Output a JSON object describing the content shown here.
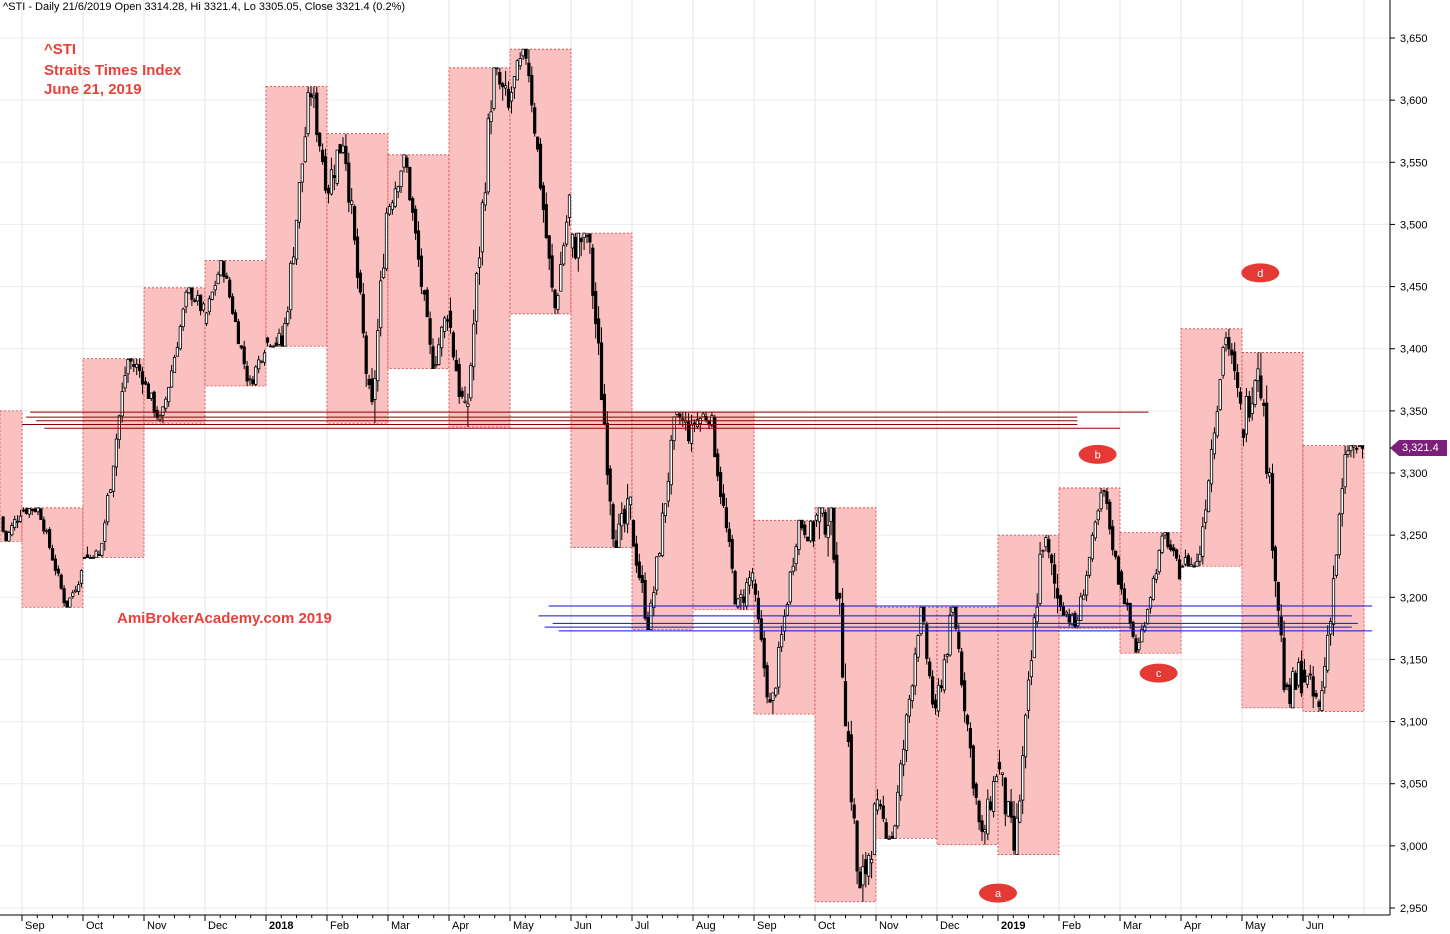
{
  "header": "^STI - Daily 21/6/2019 Open 3314.28, Hi 3321.4, Lo 3305.05, Close 3321.4 (0.2%)",
  "annotations": [
    "^STI",
    "Straits Times Index",
    "June 21, 2019"
  ],
  "watermark": "AmiBrokerAcademy.com  2019",
  "colors": {
    "box_fill": "#fbb9b9",
    "box_border": "#d04040",
    "candle": "#000000",
    "red_line": "#8b0000",
    "blue_line": "#1010c8",
    "wave_label": "#e53935",
    "last_label": "#7b1f7b"
  },
  "chart_data": {
    "type": "candlestick",
    "ylim": [
      2940,
      3670
    ],
    "y_ticks": [
      2950,
      3000,
      3050,
      3100,
      3150,
      3200,
      3250,
      3300,
      3350,
      3400,
      3450,
      3500,
      3550,
      3600,
      3650
    ],
    "y_tick_labels": [
      "2,950",
      "3,000",
      "3,050",
      "3,100",
      "3,150",
      "3,200",
      "3,250",
      "3,300",
      "3,350",
      "3,400",
      "3,450",
      "3,500",
      "3,550",
      "3,600",
      "3,650"
    ],
    "x_labels": [
      {
        "label": "Sep",
        "bold": false
      },
      {
        "label": "Oct",
        "bold": false
      },
      {
        "label": "Nov",
        "bold": false
      },
      {
        "label": "Dec",
        "bold": false
      },
      {
        "label": "2018",
        "bold": true
      },
      {
        "label": "Feb",
        "bold": false
      },
      {
        "label": "Mar",
        "bold": false
      },
      {
        "label": "Apr",
        "bold": false
      },
      {
        "label": "May",
        "bold": false
      },
      {
        "label": "Jun",
        "bold": false
      },
      {
        "label": "Jul",
        "bold": false
      },
      {
        "label": "Aug",
        "bold": false
      },
      {
        "label": "Sep",
        "bold": false
      },
      {
        "label": "Oct",
        "bold": false
      },
      {
        "label": "Nov",
        "bold": false
      },
      {
        "label": "Dec",
        "bold": false
      },
      {
        "label": "2019",
        "bold": true
      },
      {
        "label": "Feb",
        "bold": false
      },
      {
        "label": "Mar",
        "bold": false
      },
      {
        "label": "Apr",
        "bold": false
      },
      {
        "label": "May",
        "bold": false
      },
      {
        "label": "Jun",
        "bold": false
      }
    ],
    "start_month": "2017-08",
    "months": [
      "2017-08",
      "2017-09",
      "2017-10",
      "2017-11",
      "2017-12",
      "2018-01",
      "2018-02",
      "2018-03",
      "2018-04",
      "2018-05",
      "2018-06",
      "2018-07",
      "2018-08",
      "2018-09",
      "2018-10",
      "2018-11",
      "2018-12",
      "2019-01",
      "2019-02",
      "2019-03",
      "2019-04",
      "2019-05",
      "2019-06"
    ],
    "monthly": [
      {
        "open": 3300,
        "high": 3350,
        "low": 3245,
        "close": 3270
      },
      {
        "open": 3270,
        "high": 3272,
        "low": 3192,
        "close": 3220
      },
      {
        "open": 3230,
        "high": 3392,
        "low": 3232,
        "close": 3380
      },
      {
        "open": 3375,
        "high": 3449,
        "low": 3340,
        "close": 3430
      },
      {
        "open": 3420,
        "high": 3471,
        "low": 3370,
        "close": 3402
      },
      {
        "open": 3405,
        "high": 3611,
        "low": 3402,
        "close": 3540
      },
      {
        "open": 3525,
        "high": 3573,
        "low": 3340,
        "close": 3510
      },
      {
        "open": 3510,
        "high": 3556,
        "low": 3384,
        "close": 3430
      },
      {
        "open": 3430,
        "high": 3626,
        "low": 3337,
        "close": 3590
      },
      {
        "open": 3600,
        "high": 3641,
        "low": 3428,
        "close": 3520
      },
      {
        "open": 3480,
        "high": 3493,
        "low": 3240,
        "close": 3270
      },
      {
        "open": 3260,
        "high": 3349,
        "low": 3174,
        "close": 3330
      },
      {
        "open": 3340,
        "high": 3349,
        "low": 3190,
        "close": 3220
      },
      {
        "open": 3210,
        "high": 3262,
        "low": 3106,
        "close": 3250
      },
      {
        "open": 3260,
        "high": 3272,
        "low": 2955,
        "close": 3020
      },
      {
        "open": 3030,
        "high": 3192,
        "low": 3006,
        "close": 3100
      },
      {
        "open": 3110,
        "high": 3192,
        "low": 3001,
        "close": 3060
      },
      {
        "open": 3070,
        "high": 3250,
        "low": 2993,
        "close": 3200
      },
      {
        "open": 3200,
        "high": 3288,
        "low": 3175,
        "close": 3215
      },
      {
        "open": 3220,
        "high": 3252,
        "low": 3155,
        "close": 3220
      },
      {
        "open": 3225,
        "high": 3416,
        "low": 3225,
        "close": 3350
      },
      {
        "open": 3330,
        "high": 3397,
        "low": 3111,
        "close": 3140
      },
      {
        "open": 3140,
        "high": 3322,
        "low": 3108,
        "close": 3321.4
      }
    ],
    "red_lines": [
      {
        "y": 3349,
        "from": "2017-09-05",
        "to": "2019-03-15"
      },
      {
        "y": 3345,
        "from": "2017-09-03",
        "to": "2019-02-10"
      },
      {
        "y": 3342,
        "from": "2017-09-08",
        "to": "2019-02-10"
      },
      {
        "y": 3339,
        "from": "2017-09-01",
        "to": "2019-02-10"
      },
      {
        "y": 3336,
        "from": "2017-09-12",
        "to": "2019-03-01"
      }
    ],
    "blue_lines": [
      {
        "y": 3193,
        "from": "2018-05-20",
        "to": "2019-07-05"
      },
      {
        "y": 3185,
        "from": "2018-05-15",
        "to": "2019-06-25"
      },
      {
        "y": 3179,
        "from": "2018-05-22",
        "to": "2019-06-28"
      },
      {
        "y": 3176,
        "from": "2018-05-18",
        "to": "2019-06-25"
      },
      {
        "y": 3173,
        "from": "2018-05-25",
        "to": "2019-07-05"
      }
    ],
    "wave_labels": [
      {
        "label": "a",
        "date": "2018-12-31",
        "y": 2962
      },
      {
        "label": "b",
        "date": "2019-02-20",
        "y": 3315
      },
      {
        "label": "c",
        "date": "2019-03-20",
        "y": 3139
      },
      {
        "label": "d",
        "date": "2019-05-10",
        "y": 3461
      }
    ],
    "last_value_label": "3,321.4",
    "last_value": 3321.4
  }
}
